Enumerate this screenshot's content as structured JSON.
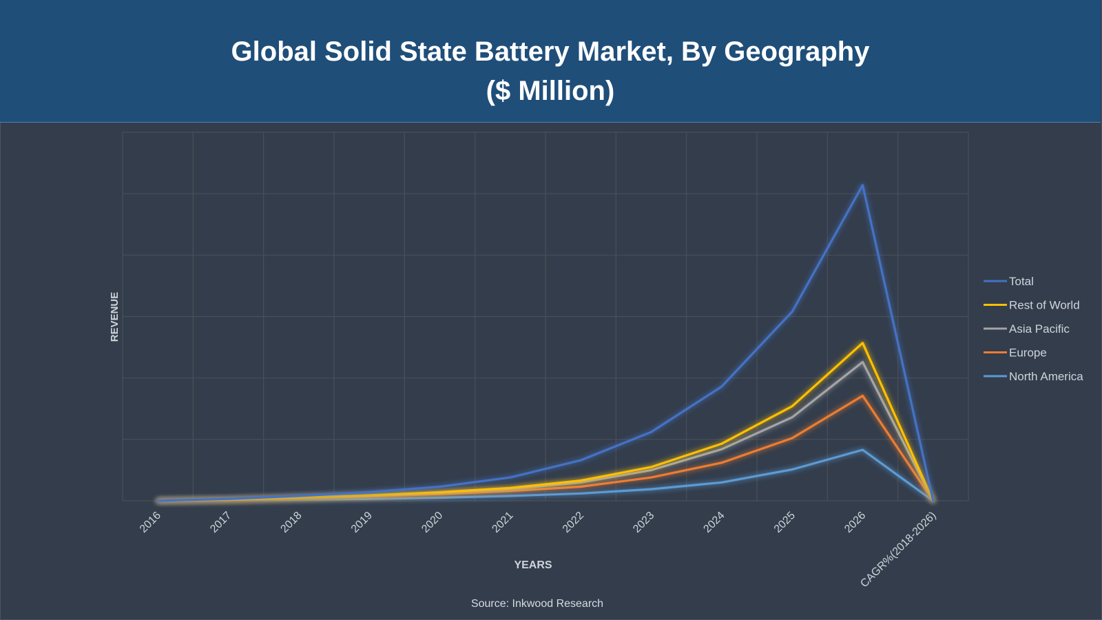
{
  "title": {
    "line1": "Global Solid State Battery Market, By Geography",
    "line2": "($ Million)"
  },
  "source": "Source: Inkwood Research",
  "colors": {
    "banner": "#1f4e79",
    "background": "#333d4c",
    "grid": "#4b4f56"
  },
  "chart_data": {
    "type": "line",
    "xlabel": "YEARS",
    "ylabel": "REVENUE",
    "categories": [
      "2016",
      "2017",
      "2018",
      "2019",
      "2020",
      "2021",
      "2022",
      "2023",
      "2024",
      "2025",
      "2026",
      "CAGR%(2018-2026)"
    ],
    "ylim": [
      0,
      6
    ],
    "grid": true,
    "legend_position": "right",
    "series": [
      {
        "name": "Total",
        "color": "#4472c4",
        "values": [
          0.0,
          0.03,
          0.08,
          0.14,
          0.23,
          0.38,
          0.66,
          1.12,
          1.86,
          3.08,
          5.14,
          0.0
        ]
      },
      {
        "name": "Rest of World",
        "color": "#ffc000",
        "values": [
          0.0,
          0.02,
          0.05,
          0.09,
          0.14,
          0.21,
          0.33,
          0.55,
          0.93,
          1.54,
          2.57,
          0.0
        ]
      },
      {
        "name": "Asia Pacific",
        "color": "#a5a5a5",
        "values": [
          0.0,
          0.02,
          0.05,
          0.08,
          0.13,
          0.19,
          0.3,
          0.5,
          0.84,
          1.36,
          2.26,
          0.0
        ]
      },
      {
        "name": "Europe",
        "color": "#ed7d31",
        "values": [
          0.0,
          0.01,
          0.04,
          0.07,
          0.11,
          0.16,
          0.23,
          0.38,
          0.62,
          1.02,
          1.71,
          0.0
        ]
      },
      {
        "name": "North America",
        "color": "#5b9bd5",
        "values": [
          0.0,
          0.01,
          0.02,
          0.03,
          0.05,
          0.08,
          0.12,
          0.19,
          0.3,
          0.51,
          0.83,
          0.0
        ]
      }
    ]
  }
}
